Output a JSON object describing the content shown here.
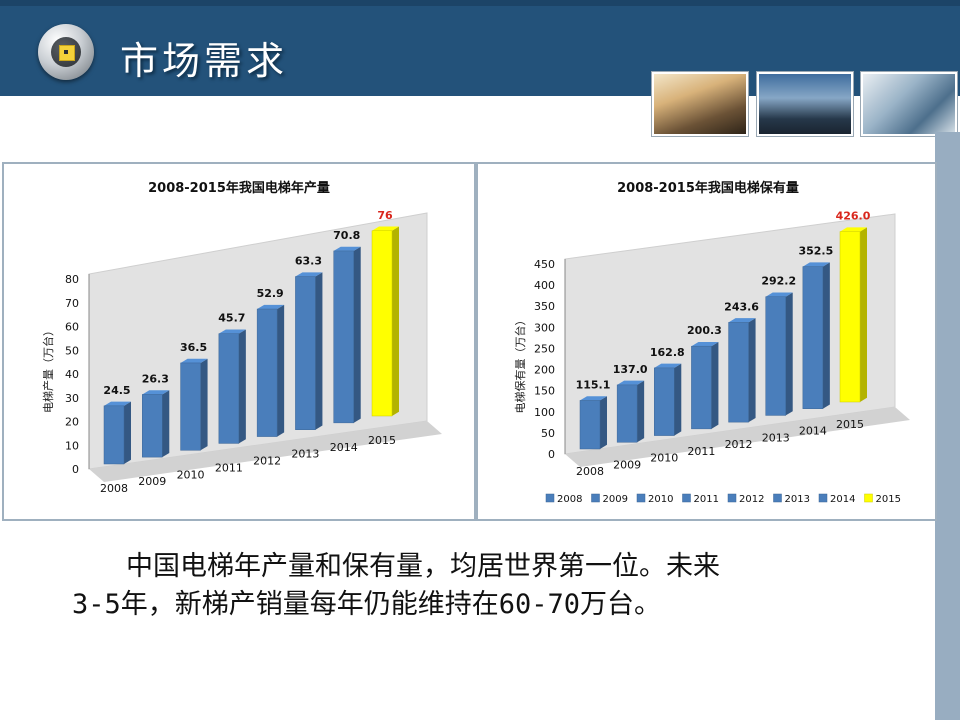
{
  "header": {
    "title": "市场需求"
  },
  "photos": [
    {
      "name": "escalator-photo"
    },
    {
      "name": "building-night-photo"
    },
    {
      "name": "glass-building-photo"
    }
  ],
  "body_text": {
    "line1": "中国电梯年产量和保有量，均居世界第一位。未来",
    "line2": "3-5年，新梯产销量每年仍能维持在60-70万台。"
  },
  "chart_data": [
    {
      "type": "bar",
      "title": "2008-2015年我国电梯年产量",
      "ylabel": "电梯产量（万台）",
      "xlabel": "",
      "categories": [
        "2008",
        "2009",
        "2010",
        "2011",
        "2012",
        "2013",
        "2014",
        "2015"
      ],
      "values": [
        24.5,
        26.3,
        36.5,
        45.7,
        52.9,
        63.3,
        70.8,
        76
      ],
      "value_labels": [
        "24.5",
        "26.3",
        "36.5",
        "45.7",
        "52.9",
        "63.3",
        "70.8",
        "76"
      ],
      "ylim": [
        0,
        80
      ],
      "yticks": [
        "0",
        "10",
        "20",
        "30",
        "40",
        "50",
        "60",
        "70",
        "80"
      ],
      "colors": {
        "bar": "#4a7ebb",
        "highlight": "#ffff00",
        "highlight_label": "#d9261c"
      },
      "highlight_index": 7,
      "legend": false,
      "grid": false
    },
    {
      "type": "bar",
      "title": "2008-2015年我国电梯保有量",
      "ylabel": "电梯保有量（万台）",
      "xlabel": "",
      "categories": [
        "2008",
        "2009",
        "2010",
        "2011",
        "2012",
        "2013",
        "2014",
        "2015"
      ],
      "values": [
        115.1,
        137.0,
        162.8,
        200.3,
        243.6,
        292.2,
        352.5,
        426.0
      ],
      "value_labels": [
        "115.1",
        "137.0",
        "162.8",
        "200.3",
        "243.6",
        "292.2",
        "352.5",
        "426.0"
      ],
      "ylim": [
        0,
        450
      ],
      "yticks": [
        "0",
        "50",
        "100",
        "150",
        "200",
        "250",
        "300",
        "350",
        "400",
        "450"
      ],
      "colors": {
        "bar": "#4a7ebb",
        "highlight": "#ffff00",
        "highlight_label": "#d9261c"
      },
      "highlight_index": 7,
      "legend": true,
      "legend_position": "bottom",
      "grid": false
    }
  ]
}
